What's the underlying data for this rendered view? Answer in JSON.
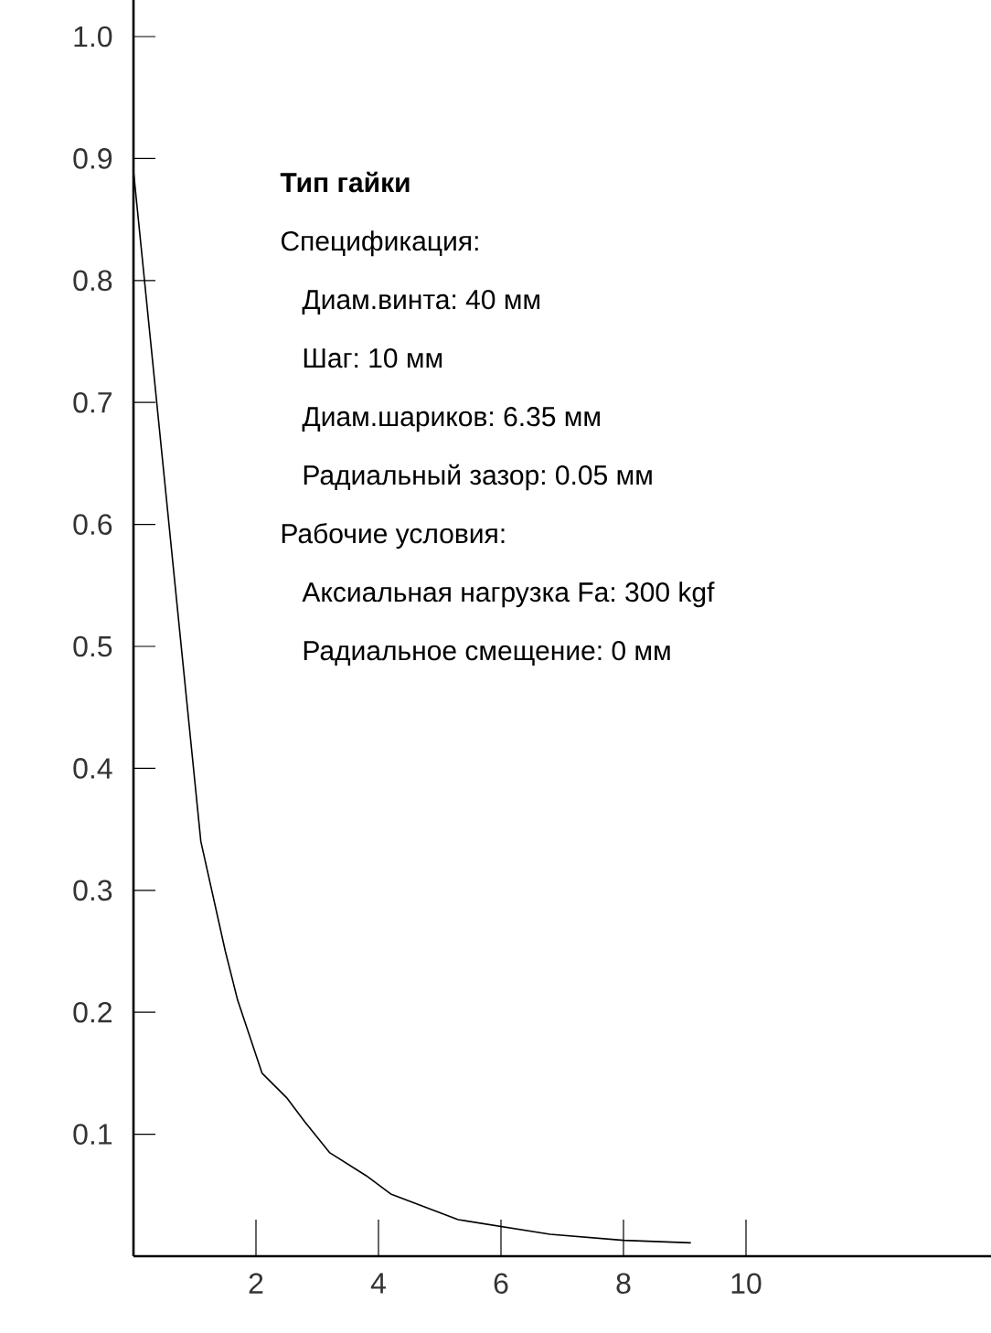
{
  "chart_data": {
    "type": "line",
    "title": "Тип гайки",
    "annotations": [
      "Спецификация:",
      "Диам.винта: 40 мм",
      "Шаг: 10 мм",
      "Диам.шариков: 6.35 мм",
      "Радиальный зазор: 0.05 мм",
      "Рабочие условия:",
      "Аксиальная нагрузка Fa: 300 kgf",
      "Радиальное смещение: 0 мм"
    ],
    "x": [
      0,
      0.8,
      1.1,
      1.5,
      1.7,
      2.1,
      2.5,
      2.8,
      3.2,
      3.8,
      4.2,
      5.3,
      6.8,
      8.0,
      9.1
    ],
    "series": [
      {
        "color": "#000000",
        "values": [
          0.89,
          0.49,
          0.34,
          0.25,
          0.21,
          0.15,
          0.13,
          0.11,
          0.085,
          0.066,
          0.051,
          0.03,
          0.018,
          0.013,
          0.011
        ]
      }
    ],
    "xlim": [
      0,
      14
    ],
    "ylim": [
      0,
      1.03
    ],
    "xticks": [
      2,
      4,
      6,
      8,
      10
    ],
    "yticks": [
      0.1,
      0.2,
      0.3,
      0.4,
      0.5,
      0.6,
      0.7,
      0.8,
      0.9,
      {
        "value": 1.0,
        "label": "1.0"
      }
    ],
    "grid": false,
    "marker": "none",
    "line_style": "solid"
  }
}
